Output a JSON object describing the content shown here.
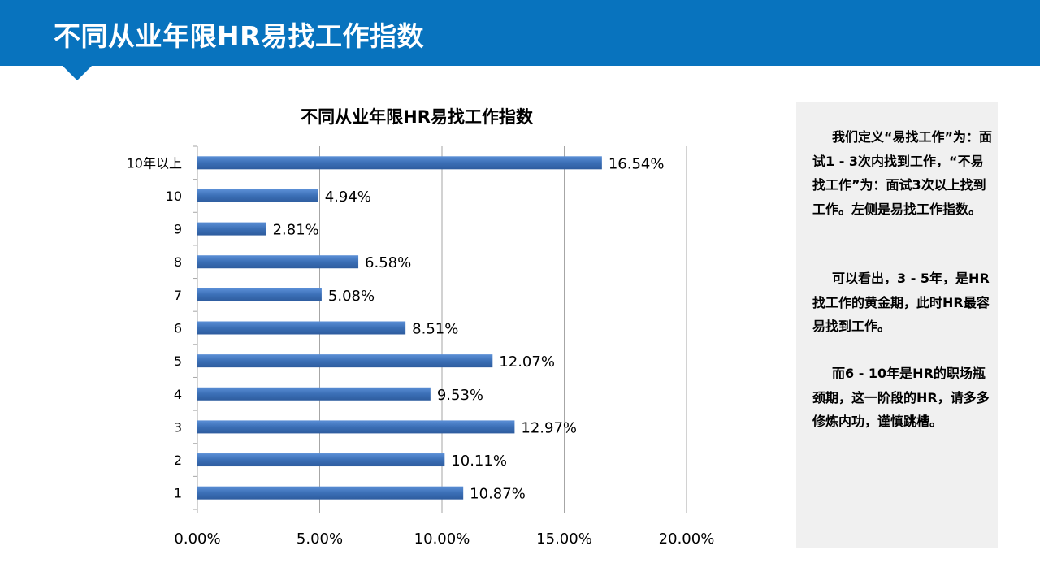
{
  "header": {
    "title": "不同从业年限HR易找工作指数"
  },
  "colors": {
    "header_bg": "#0873be",
    "bar_fill": "#3b6fb6",
    "bar_fill_light": "#5b8fd6",
    "panel_bg": "#f0f0f0",
    "grid": "#a6a6a6"
  },
  "side_panel": {
    "paragraphs": [
      "我们定义“易找工作”为：面试1 - 3次内找到工作，“不易找工作”为：面试3次以上找到工作。左侧是易找工作指数。",
      "可以看出，3 - 5年，是HR找工作的黄金期，此时HR最容易找到工作。",
      "而6 - 10年是HR的职场瓶颈期，这一阶段的HR，请多多修炼内功，谨慎跳槽。"
    ]
  },
  "chart_data": {
    "type": "bar",
    "orientation": "horizontal",
    "title": "不同从业年限HR易找工作指数",
    "categories": [
      "10年以上",
      "10",
      "9",
      "8",
      "7",
      "6",
      "5",
      "4",
      "3",
      "2",
      "1"
    ],
    "values": [
      16.54,
      4.94,
      2.81,
      6.58,
      5.08,
      8.51,
      12.07,
      9.53,
      12.97,
      10.11,
      10.87
    ],
    "data_labels": [
      "16.54%",
      "4.94%",
      "2.81%",
      "6.58%",
      "5.08%",
      "8.51%",
      "12.07%",
      "9.53%",
      "12.97%",
      "10.11%",
      "10.87%"
    ],
    "x_ticks": [
      0,
      5,
      10,
      15,
      20
    ],
    "x_tick_labels": [
      "0.00%",
      "5.00%",
      "10.00%",
      "15.00%",
      "20.00%"
    ],
    "xlim": [
      0,
      20
    ],
    "xlabel": "",
    "ylabel": "",
    "grid": true,
    "legend": "none"
  }
}
